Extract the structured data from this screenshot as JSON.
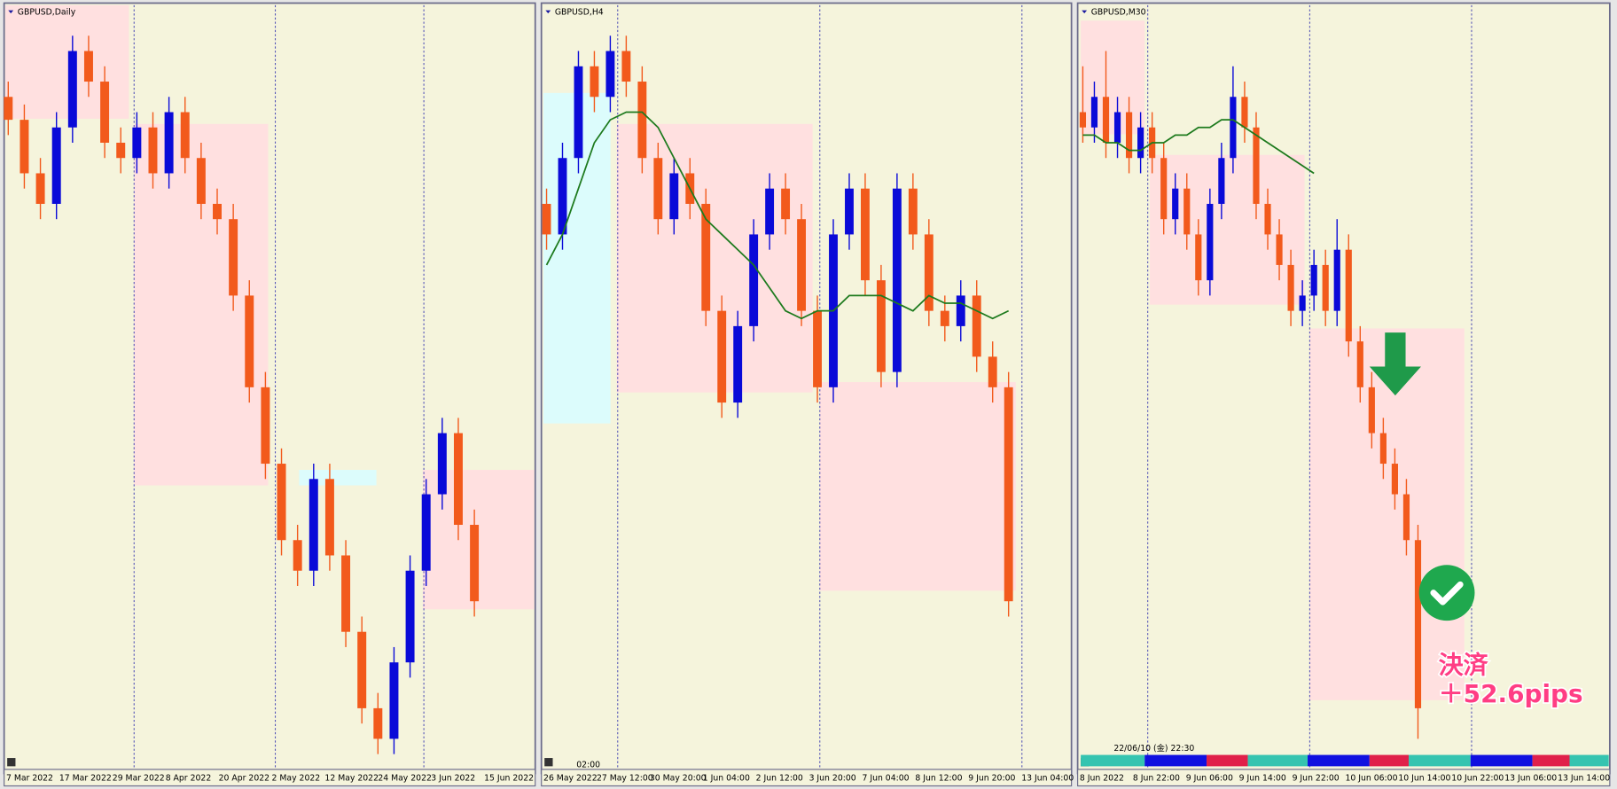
{
  "panels": [
    {
      "title": "GBPUSD,Daily",
      "up_color": "#0a0ad8",
      "down_color": "#f25a1c",
      "ylim": [
        0,
        100
      ],
      "x_labels": [
        "7 Mar 2022",
        "17 Mar 2022",
        "29 Mar 2022",
        "8 Apr 2022",
        "20 Apr 2022",
        "2 May 2022",
        "12 May 2022",
        "24 May 2022",
        "3 Jun 2022",
        "15 Jun 2022"
      ],
      "candles": {
        "open": [
          88,
          85,
          78,
          74,
          84,
          94,
          90,
          82,
          80,
          84,
          78,
          86,
          80,
          74,
          72,
          62,
          50,
          40,
          30,
          26,
          38,
          28,
          18,
          8,
          4,
          14,
          26,
          36,
          44,
          32
        ],
        "high": [
          90,
          87,
          80,
          86,
          96,
          96,
          92,
          84,
          86,
          86,
          88,
          88,
          82,
          76,
          74,
          64,
          52,
          42,
          32,
          40,
          40,
          30,
          20,
          10,
          16,
          28,
          38,
          46,
          46,
          34
        ],
        "low": [
          83,
          76,
          72,
          72,
          82,
          88,
          80,
          78,
          78,
          76,
          76,
          78,
          72,
          70,
          60,
          48,
          38,
          28,
          24,
          24,
          26,
          16,
          6,
          2,
          2,
          12,
          24,
          34,
          30,
          20
        ],
        "close": [
          85,
          78,
          74,
          84,
          94,
          90,
          82,
          80,
          84,
          78,
          86,
          80,
          74,
          72,
          62,
          50,
          40,
          30,
          26,
          38,
          28,
          18,
          8,
          4,
          14,
          26,
          36,
          44,
          32,
          22
        ]
      }
    },
    {
      "title": "GBPUSD,H4",
      "up_color": "#0a0ad8",
      "down_color": "#f25a1c",
      "ylim": [
        0,
        100
      ],
      "time_label": "02:00",
      "x_labels": [
        "26 May 2022",
        "27 May 12:00",
        "30 May 20:00",
        "1 Jun 04:00",
        "2 Jun 12:00",
        "3 Jun 20:00",
        "7 Jun 04:00",
        "8 Jun 12:00",
        "9 Jun 20:00",
        "13 Jun 04:00"
      ],
      "candles": {
        "open": [
          74,
          70,
          80,
          92,
          88,
          94,
          90,
          80,
          72,
          78,
          74,
          60,
          48,
          58,
          70,
          76,
          72,
          60,
          50,
          70,
          76,
          64,
          52,
          76,
          70,
          60,
          58,
          62,
          54,
          50
        ],
        "high": [
          76,
          82,
          94,
          94,
          96,
          96,
          92,
          82,
          80,
          80,
          76,
          62,
          60,
          72,
          78,
          78,
          74,
          62,
          72,
          78,
          78,
          66,
          78,
          78,
          72,
          62,
          64,
          64,
          56,
          52
        ],
        "low": [
          68,
          68,
          78,
          86,
          86,
          88,
          78,
          70,
          70,
          72,
          58,
          46,
          46,
          56,
          68,
          70,
          58,
          48,
          48,
          68,
          62,
          50,
          50,
          68,
          58,
          56,
          56,
          52,
          48,
          20
        ],
        "close": [
          70,
          80,
          92,
          88,
          94,
          90,
          80,
          72,
          78,
          74,
          60,
          48,
          58,
          70,
          76,
          72,
          60,
          50,
          70,
          76,
          64,
          52,
          76,
          70,
          60,
          58,
          62,
          54,
          50,
          22
        ]
      },
      "ma": {
        "color": "#1d7a1d",
        "values": [
          66,
          70,
          76,
          82,
          85,
          86,
          86,
          84,
          80,
          76,
          72,
          70,
          68,
          66,
          63,
          60,
          59,
          60,
          60,
          62,
          62,
          62,
          61,
          60,
          62,
          61,
          61,
          60,
          59,
          60
        ]
      }
    },
    {
      "title": "GBPUSD,M30",
      "up_color": "#0a0ad8",
      "down_color": "#f25a1c",
      "ylim": [
        0,
        100
      ],
      "time_label": "22/06/10 (金) 22:30",
      "annotation": [
        "決済",
        "＋52.6pips"
      ],
      "x_labels": [
        "8 Jun 2022",
        "8 Jun 22:00",
        "9 Jun 06:00",
        "9 Jun 14:00",
        "9 Jun 22:00",
        "10 Jun 06:00",
        "10 Jun 14:00",
        "10 Jun 22:00",
        "13 Jun 06:00",
        "13 Jun 14:00"
      ],
      "candles": {
        "open": [
          86,
          84,
          88,
          82,
          86,
          80,
          84,
          80,
          72,
          76,
          70,
          64,
          74,
          80,
          88,
          84,
          74,
          70,
          66,
          60,
          62,
          66,
          60,
          68,
          56,
          50,
          44,
          40,
          36,
          30
        ],
        "high": [
          92,
          90,
          94,
          88,
          88,
          86,
          86,
          82,
          78,
          78,
          72,
          76,
          82,
          92,
          90,
          86,
          76,
          72,
          68,
          64,
          68,
          68,
          72,
          70,
          58,
          52,
          46,
          42,
          38,
          32
        ],
        "low": [
          82,
          82,
          80,
          80,
          78,
          78,
          78,
          70,
          70,
          68,
          62,
          62,
          72,
          78,
          82,
          72,
          68,
          64,
          58,
          58,
          60,
          58,
          58,
          54,
          48,
          42,
          38,
          34,
          28,
          4
        ],
        "close": [
          84,
          88,
          82,
          86,
          80,
          84,
          80,
          72,
          76,
          70,
          64,
          74,
          80,
          88,
          84,
          74,
          70,
          66,
          60,
          62,
          66,
          60,
          68,
          56,
          50,
          44,
          40,
          36,
          30,
          8
        ]
      },
      "ma": {
        "color": "#1d7a1d",
        "values": [
          83,
          83,
          82,
          82,
          81,
          81,
          82,
          82,
          83,
          83,
          84,
          84,
          85,
          85,
          84,
          83,
          82,
          81,
          80,
          79,
          78,
          null,
          null,
          null,
          null,
          null,
          null,
          null,
          null,
          null
        ]
      }
    }
  ]
}
